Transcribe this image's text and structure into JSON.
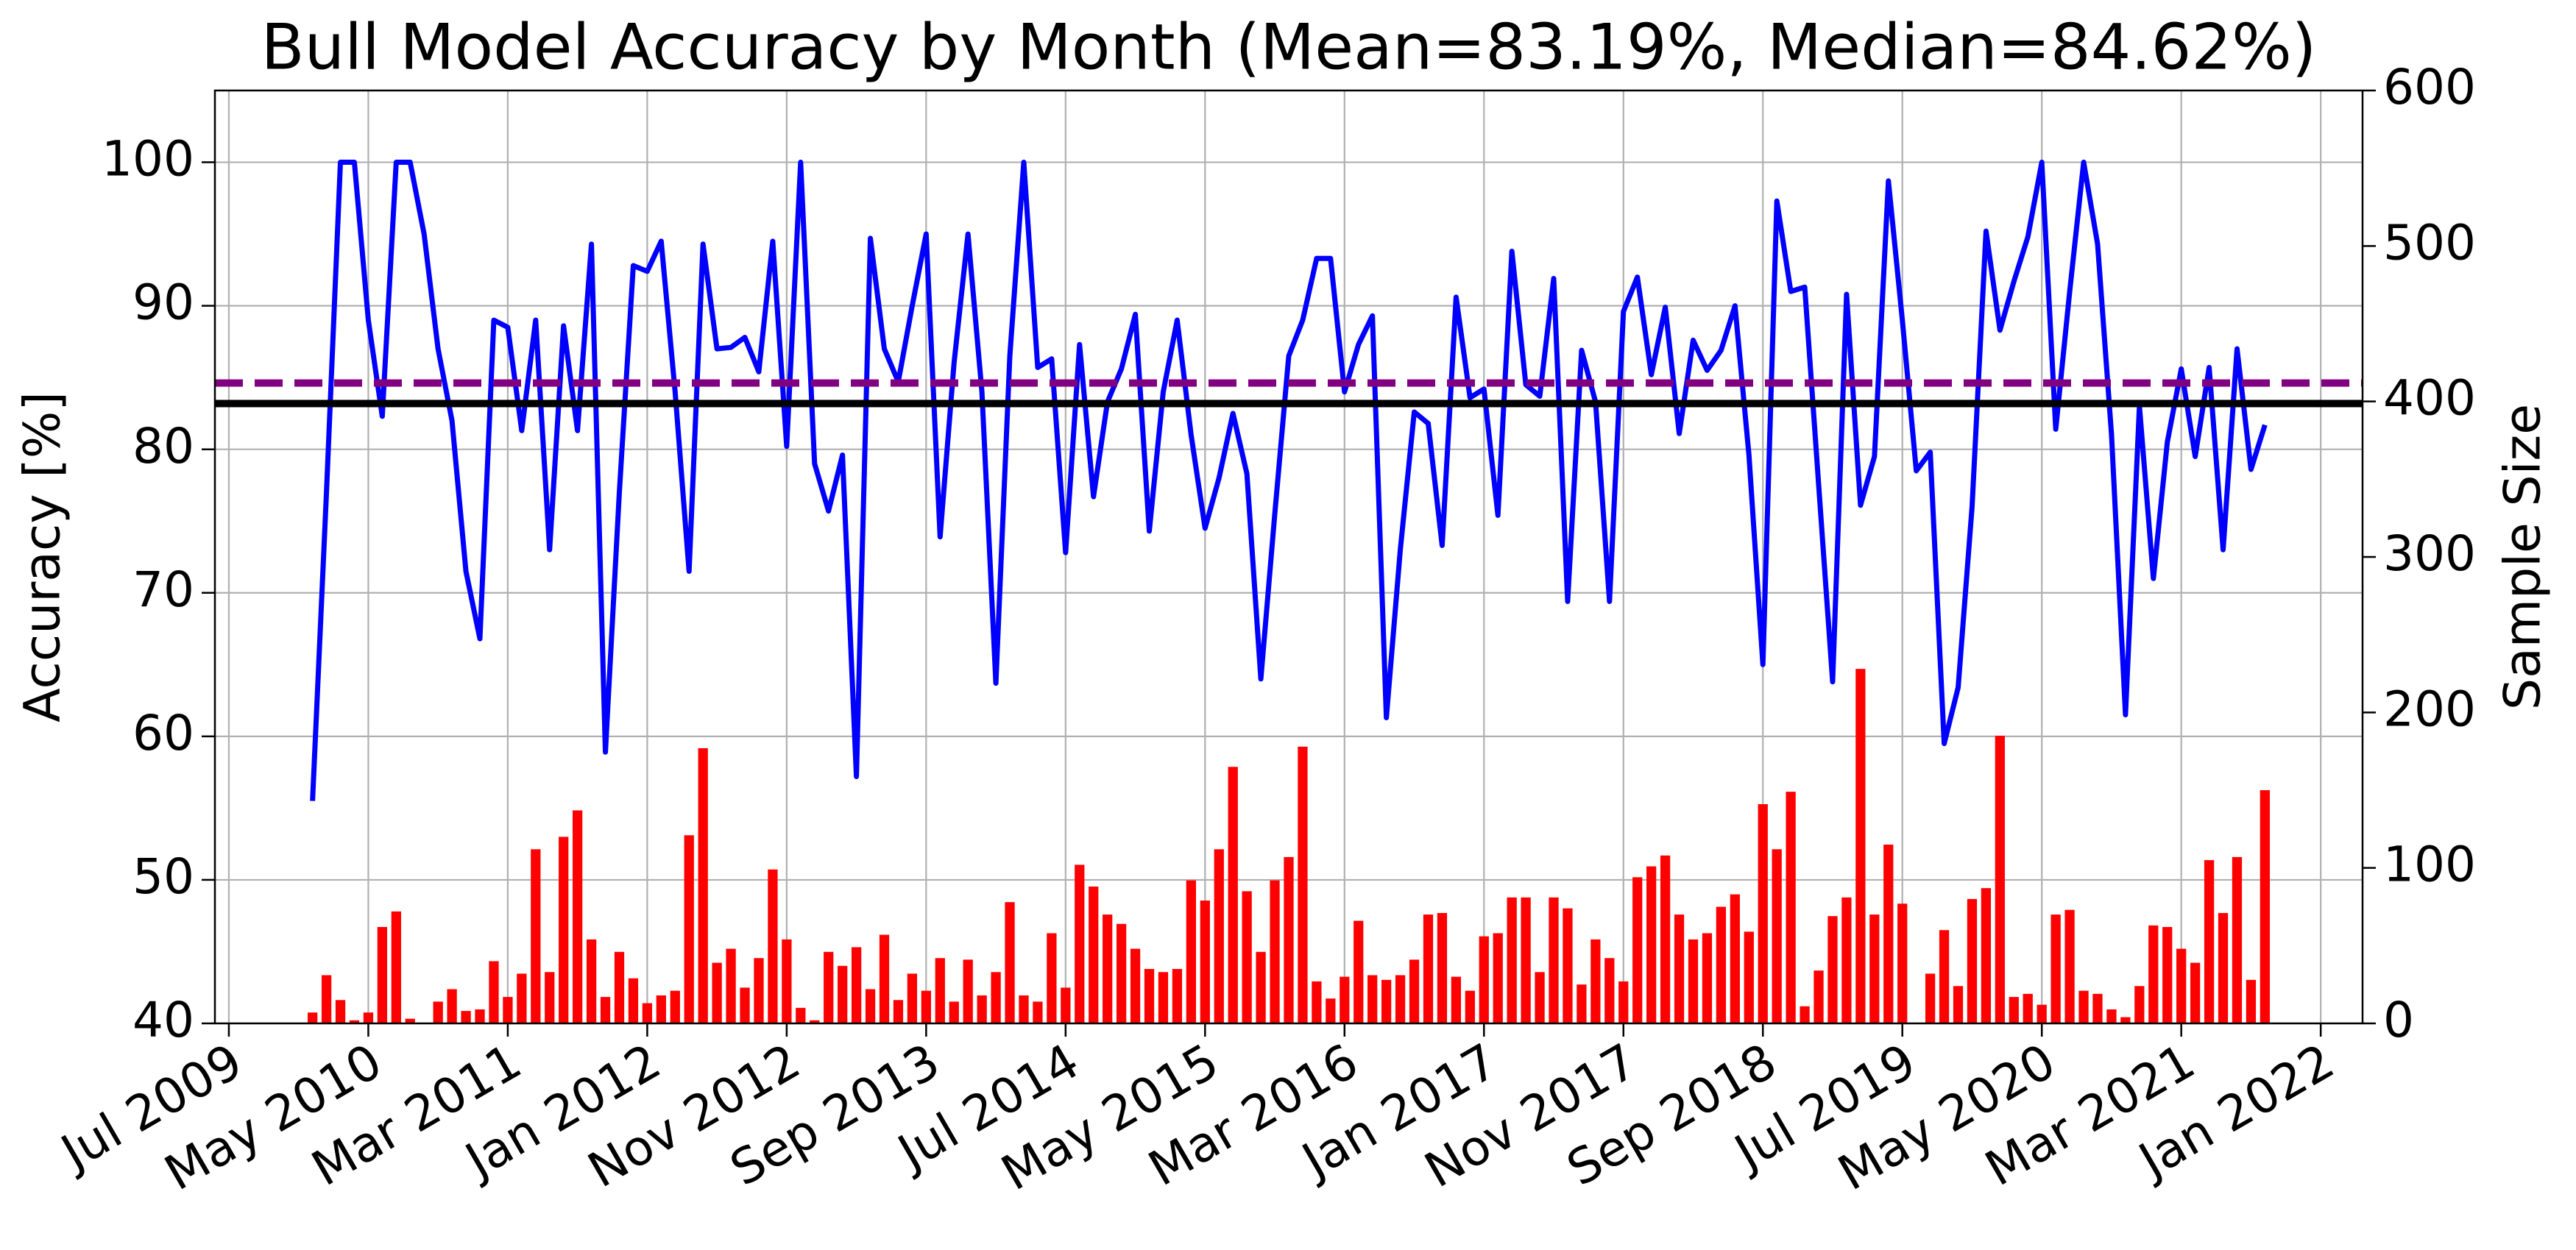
{
  "chart_data": {
    "type": "combo",
    "title": "Bull Model Accuracy by Month (Mean=83.19%, Median=84.62%)",
    "ylabel": "Accuracy [%]",
    "y2label": "Sample Size",
    "x": [
      "2010-01",
      "2010-02",
      "2010-03",
      "2010-04",
      "2010-05",
      "2010-06",
      "2010-07",
      "2010-08",
      "2010-09",
      "2010-10",
      "2010-11",
      "2010-12",
      "2011-01",
      "2011-02",
      "2011-03",
      "2011-04",
      "2011-05",
      "2011-06",
      "2011-07",
      "2011-08",
      "2011-09",
      "2011-10",
      "2011-11",
      "2011-12",
      "2012-01",
      "2012-02",
      "2012-03",
      "2012-04",
      "2012-05",
      "2012-06",
      "2012-07",
      "2012-08",
      "2012-09",
      "2012-10",
      "2012-11",
      "2012-12",
      "2013-01",
      "2013-02",
      "2013-03",
      "2013-04",
      "2013-05",
      "2013-06",
      "2013-07",
      "2013-08",
      "2013-09",
      "2013-10",
      "2013-11",
      "2013-12",
      "2014-01",
      "2014-02",
      "2014-03",
      "2014-04",
      "2014-05",
      "2014-06",
      "2014-07",
      "2014-08",
      "2014-09",
      "2014-10",
      "2014-11",
      "2014-12",
      "2015-01",
      "2015-02",
      "2015-03",
      "2015-04",
      "2015-05",
      "2015-06",
      "2015-07",
      "2015-08",
      "2015-09",
      "2015-10",
      "2015-11",
      "2015-12",
      "2016-01",
      "2016-02",
      "2016-03",
      "2016-04",
      "2016-05",
      "2016-06",
      "2016-07",
      "2016-08",
      "2016-09",
      "2016-10",
      "2016-11",
      "2016-12",
      "2017-01",
      "2017-02",
      "2017-03",
      "2017-04",
      "2017-05",
      "2017-06",
      "2017-07",
      "2017-08",
      "2017-09",
      "2017-10",
      "2017-11",
      "2017-12",
      "2018-01",
      "2018-02",
      "2018-03",
      "2018-04",
      "2018-05",
      "2018-06",
      "2018-07",
      "2018-08",
      "2018-09",
      "2018-10",
      "2018-11",
      "2018-12",
      "2019-01",
      "2019-02",
      "2019-03",
      "2019-04",
      "2019-05",
      "2019-06",
      "2019-07",
      "2019-08",
      "2019-09",
      "2019-10",
      "2019-11",
      "2019-12",
      "2020-01",
      "2020-02",
      "2020-03",
      "2020-04",
      "2020-05",
      "2020-06",
      "2020-07",
      "2020-08",
      "2020-09",
      "2020-10",
      "2020-11",
      "2020-12",
      "2021-01",
      "2021-02",
      "2021-03",
      "2021-04",
      "2021-05",
      "2021-06",
      "2021-07",
      "2021-08",
      "2021-09"
    ],
    "series": [
      {
        "type": "bar",
        "axis": "y2",
        "color": "#ff0000",
        "values": [
          7,
          31,
          15,
          2,
          7,
          62,
          72,
          3,
          0,
          14,
          22,
          8,
          9,
          40,
          17,
          32,
          112,
          33,
          120,
          137,
          54,
          17,
          46,
          29,
          13,
          18,
          21,
          121,
          177,
          39,
          48,
          23,
          42,
          99,
          54,
          10,
          2,
          46,
          37,
          49,
          22,
          57,
          15,
          32,
          21,
          42,
          14,
          41,
          18,
          33,
          78,
          18,
          14,
          58,
          23,
          102,
          88,
          70,
          64,
          48,
          35,
          33,
          35,
          92,
          79,
          112,
          165,
          85,
          46,
          92,
          107,
          178,
          27,
          16,
          30,
          66,
          31,
          28,
          31,
          41,
          70,
          71,
          30,
          21,
          56,
          58,
          81,
          81,
          33,
          81,
          74,
          25,
          54,
          42,
          27,
          94,
          101,
          108,
          70,
          54,
          58,
          75,
          83,
          59,
          141,
          112,
          149,
          11,
          34,
          69,
          81,
          228,
          70,
          115,
          77,
          0,
          32,
          60,
          24,
          80,
          87,
          185,
          17,
          19,
          12,
          70,
          73,
          21,
          19,
          9,
          4,
          24,
          63,
          62,
          48,
          39,
          105,
          71,
          107,
          28,
          150
        ]
      },
      {
        "type": "line",
        "axis": "y",
        "color": "#0000ff",
        "values": [
          55.5,
          77,
          100,
          100,
          89,
          82.3,
          100,
          100,
          95,
          87,
          82,
          71.5,
          66.8,
          89,
          88.5,
          81.3,
          89,
          73,
          88.6,
          81.3,
          94.3,
          58.9,
          77,
          92.8,
          92.4,
          94.5,
          84,
          71.5,
          94.3,
          87,
          87.1,
          87.8,
          85.4,
          94.5,
          80.2,
          100,
          79,
          75.7,
          79.6,
          57.2,
          94.7,
          87,
          84.7,
          90,
          95,
          73.9,
          86,
          95,
          84,
          63.7,
          86.5,
          100,
          85.7,
          86.3,
          72.8,
          87.3,
          76.7,
          83.3,
          85.6,
          89.4,
          74.3,
          84,
          89,
          81,
          74.5,
          78,
          82.5,
          78.3,
          64,
          75.5,
          86.5,
          89,
          93.3,
          93.3,
          84,
          87.3,
          89.3,
          61.3,
          73,
          82.6,
          81.8,
          73.3,
          90.6,
          83.6,
          84.2,
          75.4,
          93.8,
          84.5,
          83.7,
          91.9,
          69.4,
          86.9,
          83.3,
          69.4,
          89.6,
          92,
          85.2,
          89.9,
          81.1,
          87.6,
          85.5,
          86.9,
          90,
          79.6,
          65,
          97.3,
          91,
          91.3,
          77.5,
          63.8,
          90.8,
          76.1,
          79.5,
          98.7,
          89,
          78.5,
          79.8,
          59.5,
          63.4,
          76,
          95.2,
          88.3,
          91.7,
          94.8,
          100,
          81.4,
          91,
          100,
          94.3,
          81,
          61.5,
          83,
          71,
          80.5,
          85.6,
          79.5,
          85.7,
          73,
          87,
          78.6,
          81.7
        ]
      }
    ],
    "hlines": [
      {
        "value": 83.19,
        "color": "#000000",
        "style": "solid"
      },
      {
        "value": 84.62,
        "color": "#800080",
        "style": "dashed"
      }
    ],
    "xlim": [
      "2009-06",
      "2022-04"
    ],
    "xticks": [
      {
        "value": "2009-07",
        "label": "Jul 2009"
      },
      {
        "value": "2010-05",
        "label": "May 2010"
      },
      {
        "value": "2011-03",
        "label": "Mar 2011"
      },
      {
        "value": "2012-01",
        "label": "Jan 2012"
      },
      {
        "value": "2012-11",
        "label": "Nov 2012"
      },
      {
        "value": "2013-09",
        "label": "Sep 2013"
      },
      {
        "value": "2014-07",
        "label": "Jul 2014"
      },
      {
        "value": "2015-05",
        "label": "May 2015"
      },
      {
        "value": "2016-03",
        "label": "Mar 2016"
      },
      {
        "value": "2017-01",
        "label": "Jan 2017"
      },
      {
        "value": "2017-11",
        "label": "Nov 2017"
      },
      {
        "value": "2018-09",
        "label": "Sep 2018"
      },
      {
        "value": "2019-07",
        "label": "Jul 2019"
      },
      {
        "value": "2020-05",
        "label": "May 2020"
      },
      {
        "value": "2021-03",
        "label": "Mar 2021"
      },
      {
        "value": "2022-01",
        "label": "Jan 2022"
      }
    ],
    "ylim": [
      40,
      105
    ],
    "yticks": [
      40,
      50,
      60,
      70,
      80,
      90,
      100
    ],
    "y2lim": [
      0,
      600
    ],
    "y2ticks": [
      0,
      100,
      200,
      300,
      400,
      500,
      600
    ],
    "grid": true
  }
}
